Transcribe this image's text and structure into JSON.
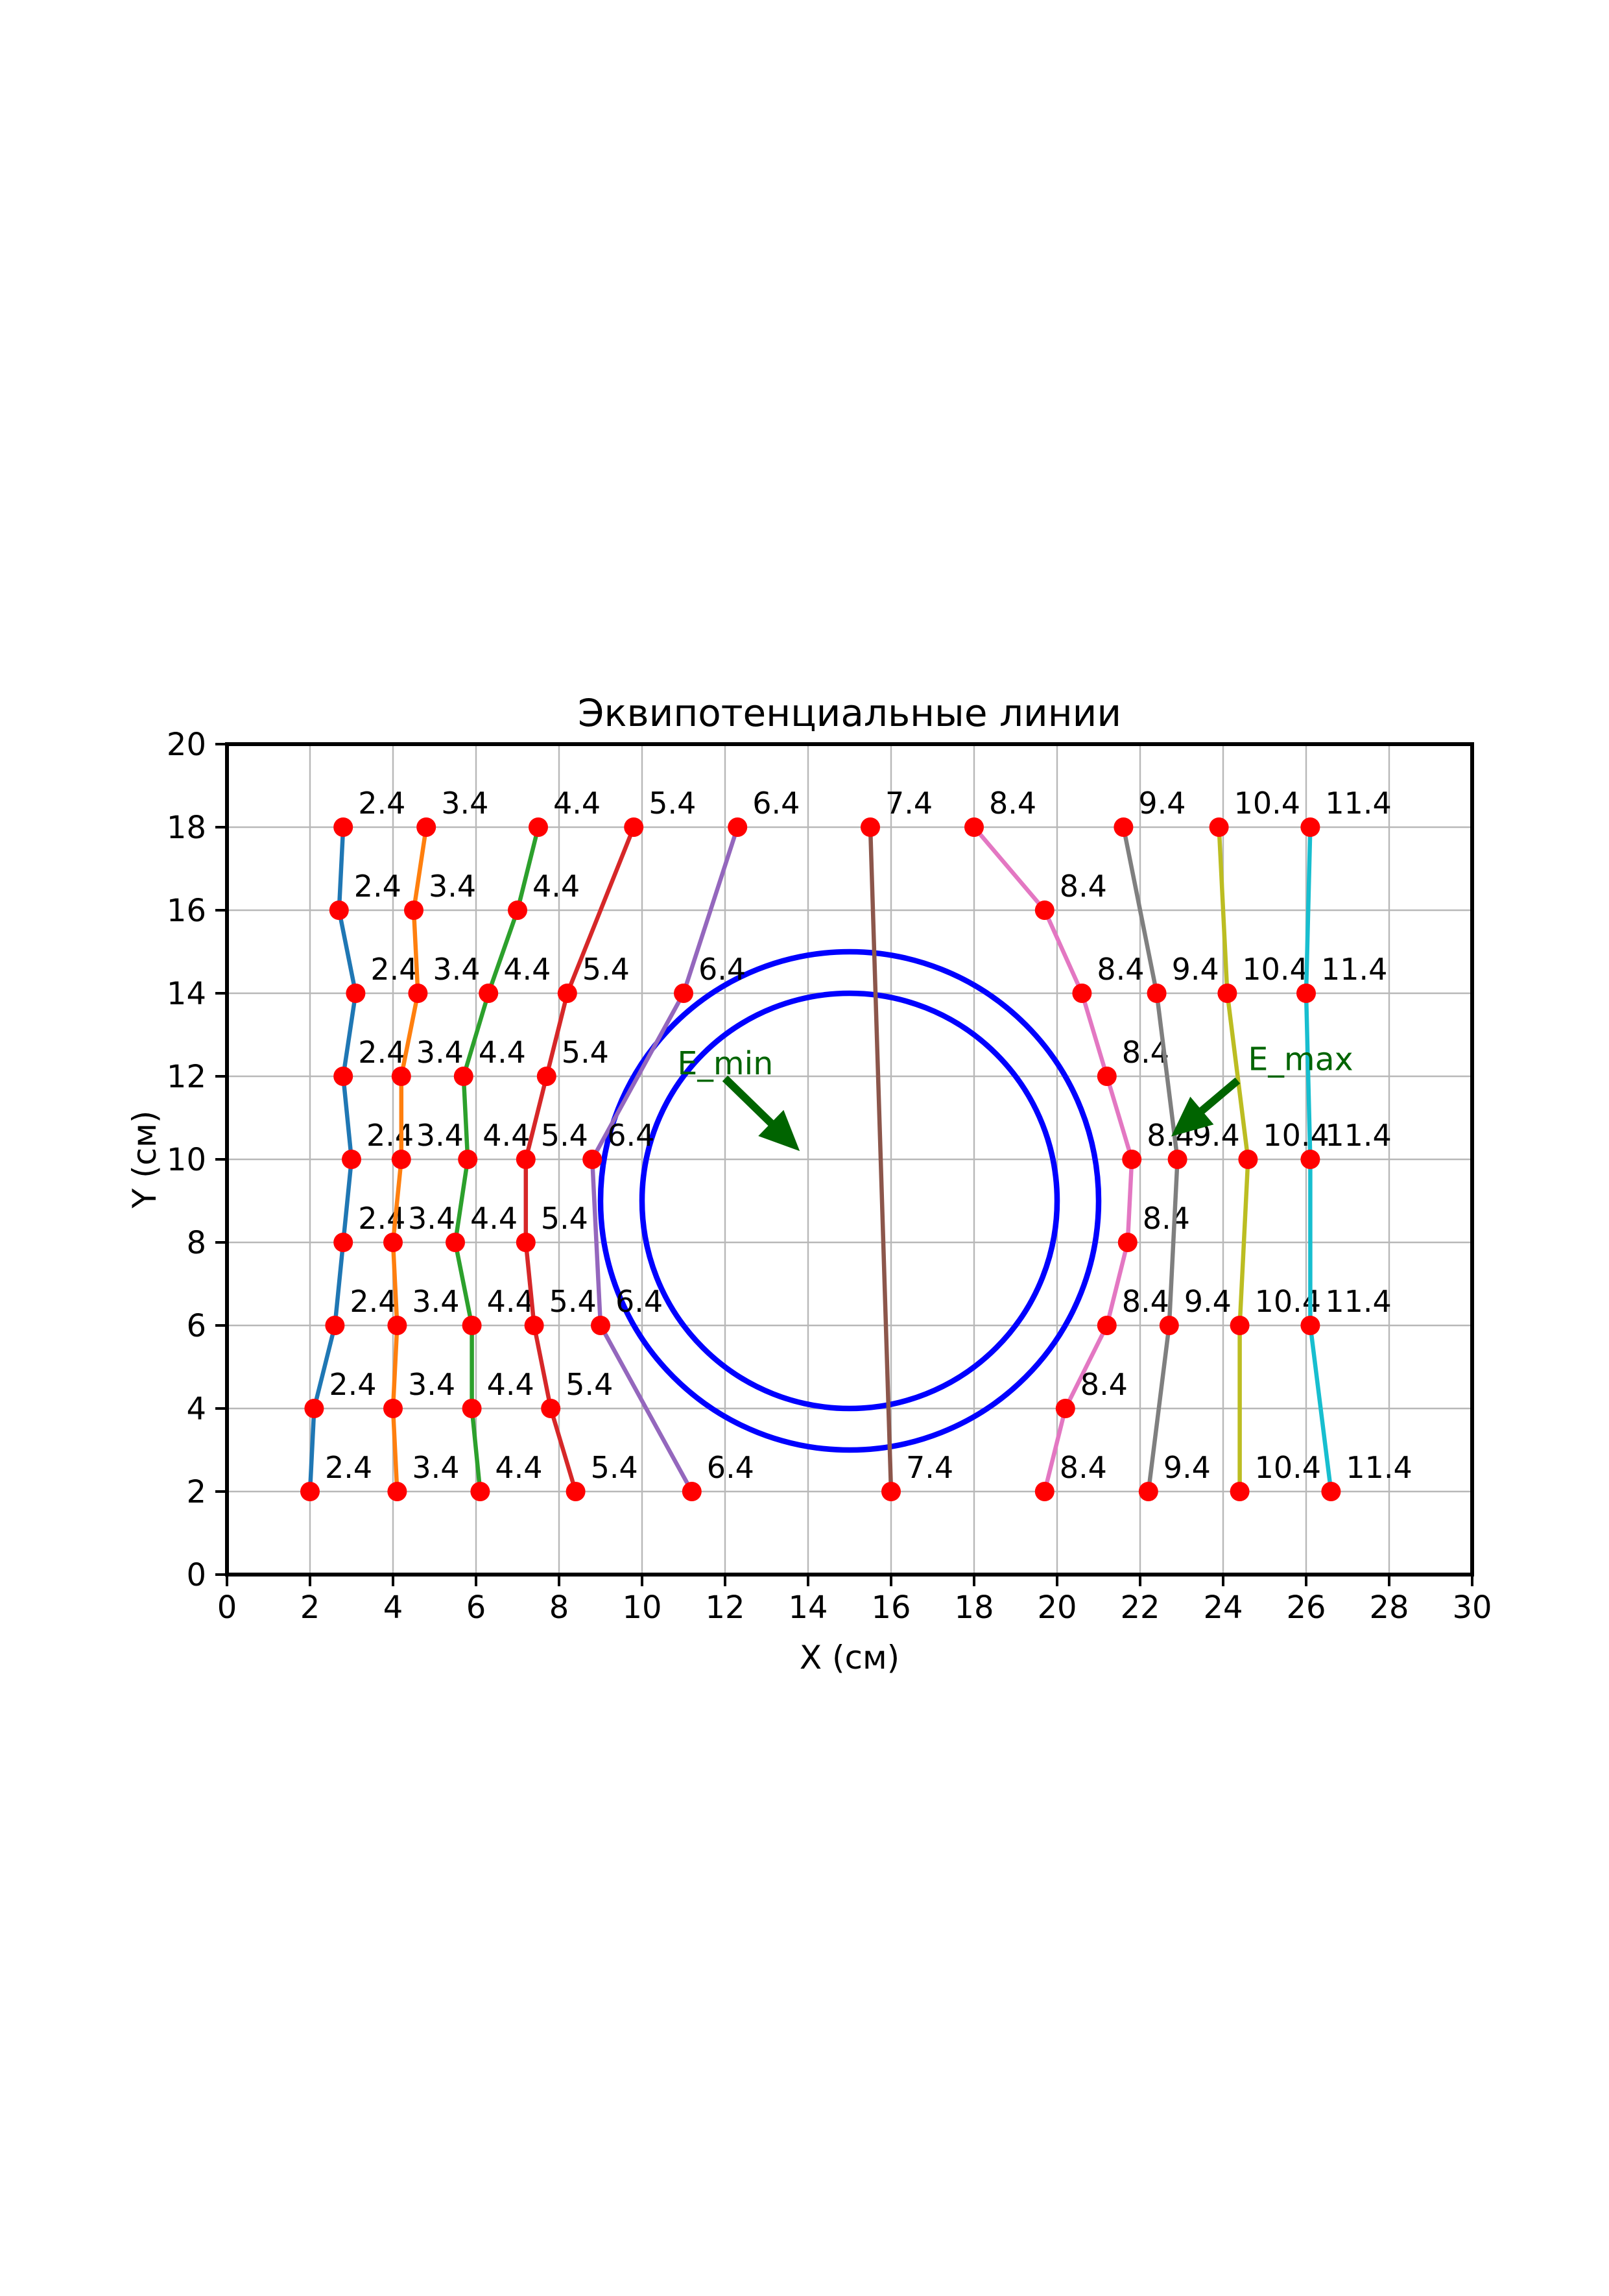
{
  "chart_data": {
    "type": "line",
    "title": "Эквипотенциальные линии",
    "xlabel": "X (см)",
    "ylabel": "Y (см)",
    "xlim": [
      0,
      30
    ],
    "ylim": [
      0,
      20
    ],
    "xticks": [
      0,
      2,
      4,
      6,
      8,
      10,
      12,
      14,
      16,
      18,
      20,
      22,
      24,
      26,
      28,
      30
    ],
    "yticks": [
      0,
      2,
      4,
      6,
      8,
      10,
      12,
      14,
      16,
      18,
      20
    ],
    "grid": true,
    "legend": "none",
    "marker": {
      "shape": "circle",
      "color": "#ff0000"
    },
    "series": [
      {
        "name": "2.4",
        "color": "#1f77b4",
        "points": [
          [
            2.8,
            18
          ],
          [
            2.7,
            16
          ],
          [
            3.1,
            14
          ],
          [
            2.8,
            12
          ],
          [
            3.0,
            10
          ],
          [
            2.8,
            8
          ],
          [
            2.6,
            6
          ],
          [
            2.1,
            4
          ],
          [
            2.0,
            2
          ]
        ]
      },
      {
        "name": "3.4",
        "color": "#ff7f0e",
        "points": [
          [
            4.8,
            18
          ],
          [
            4.5,
            16
          ],
          [
            4.6,
            14
          ],
          [
            4.2,
            12
          ],
          [
            4.2,
            10
          ],
          [
            4.0,
            8
          ],
          [
            4.1,
            6
          ],
          [
            4.0,
            4
          ],
          [
            4.1,
            2
          ]
        ]
      },
      {
        "name": "4.4",
        "color": "#2ca02c",
        "points": [
          [
            7.5,
            18
          ],
          [
            7.0,
            16
          ],
          [
            6.3,
            14
          ],
          [
            5.7,
            12
          ],
          [
            5.8,
            10
          ],
          [
            5.5,
            8
          ],
          [
            5.9,
            6
          ],
          [
            5.9,
            4
          ],
          [
            6.1,
            2
          ]
        ]
      },
      {
        "name": "5.4",
        "color": "#d62728",
        "points": [
          [
            9.8,
            18
          ],
          [
            8.2,
            14
          ],
          [
            7.7,
            12
          ],
          [
            7.2,
            10
          ],
          [
            7.2,
            8
          ],
          [
            7.4,
            6
          ],
          [
            7.8,
            4
          ],
          [
            8.4,
            2
          ]
        ]
      },
      {
        "name": "6.4",
        "color": "#9467bd",
        "points": [
          [
            12.3,
            18
          ],
          [
            11.0,
            14
          ],
          [
            8.8,
            10
          ],
          [
            9.0,
            6
          ],
          [
            11.2,
            2
          ]
        ]
      },
      {
        "name": "7.4",
        "color": "#8c564b",
        "points": [
          [
            15.5,
            18
          ],
          [
            16.0,
            2
          ]
        ]
      },
      {
        "name": "8.4",
        "color": "#e377c2",
        "points": [
          [
            18.0,
            18
          ],
          [
            19.7,
            16
          ],
          [
            20.6,
            14
          ],
          [
            21.2,
            12
          ],
          [
            21.8,
            10
          ],
          [
            21.7,
            8
          ],
          [
            21.2,
            6
          ],
          [
            20.2,
            4
          ],
          [
            19.7,
            2
          ]
        ]
      },
      {
        "name": "9.4",
        "color": "#7f7f7f",
        "points": [
          [
            21.6,
            18
          ],
          [
            22.4,
            14
          ],
          [
            22.9,
            10
          ],
          [
            22.7,
            6
          ],
          [
            22.2,
            2
          ]
        ]
      },
      {
        "name": "10.4",
        "color": "#bcbd22",
        "points": [
          [
            23.9,
            18
          ],
          [
            24.1,
            14
          ],
          [
            24.6,
            10
          ],
          [
            24.4,
            6
          ],
          [
            24.4,
            2
          ]
        ]
      },
      {
        "name": "11.4",
        "color": "#17becf",
        "points": [
          [
            26.1,
            18
          ],
          [
            26.0,
            14
          ],
          [
            26.1,
            10
          ],
          [
            26.1,
            6
          ],
          [
            26.6,
            2
          ]
        ]
      }
    ],
    "electrode_circles": [
      {
        "cx": 15,
        "cy": 9,
        "r": 6,
        "color": "#0000ff"
      },
      {
        "cx": 15,
        "cy": 9,
        "r": 5,
        "color": "#0000ff"
      }
    ],
    "annotations": [
      {
        "text": "E_min",
        "color": "#006400",
        "text_xy": [
          10.85,
          12.05
        ],
        "arrow_from": [
          12.0,
          11.95
        ],
        "arrow_to": [
          13.8,
          10.2
        ]
      },
      {
        "text": "E_max",
        "color": "#006400",
        "text_xy": [
          24.6,
          12.15
        ],
        "arrow_from": [
          24.35,
          11.9
        ],
        "arrow_to": [
          22.75,
          10.55
        ]
      }
    ]
  }
}
